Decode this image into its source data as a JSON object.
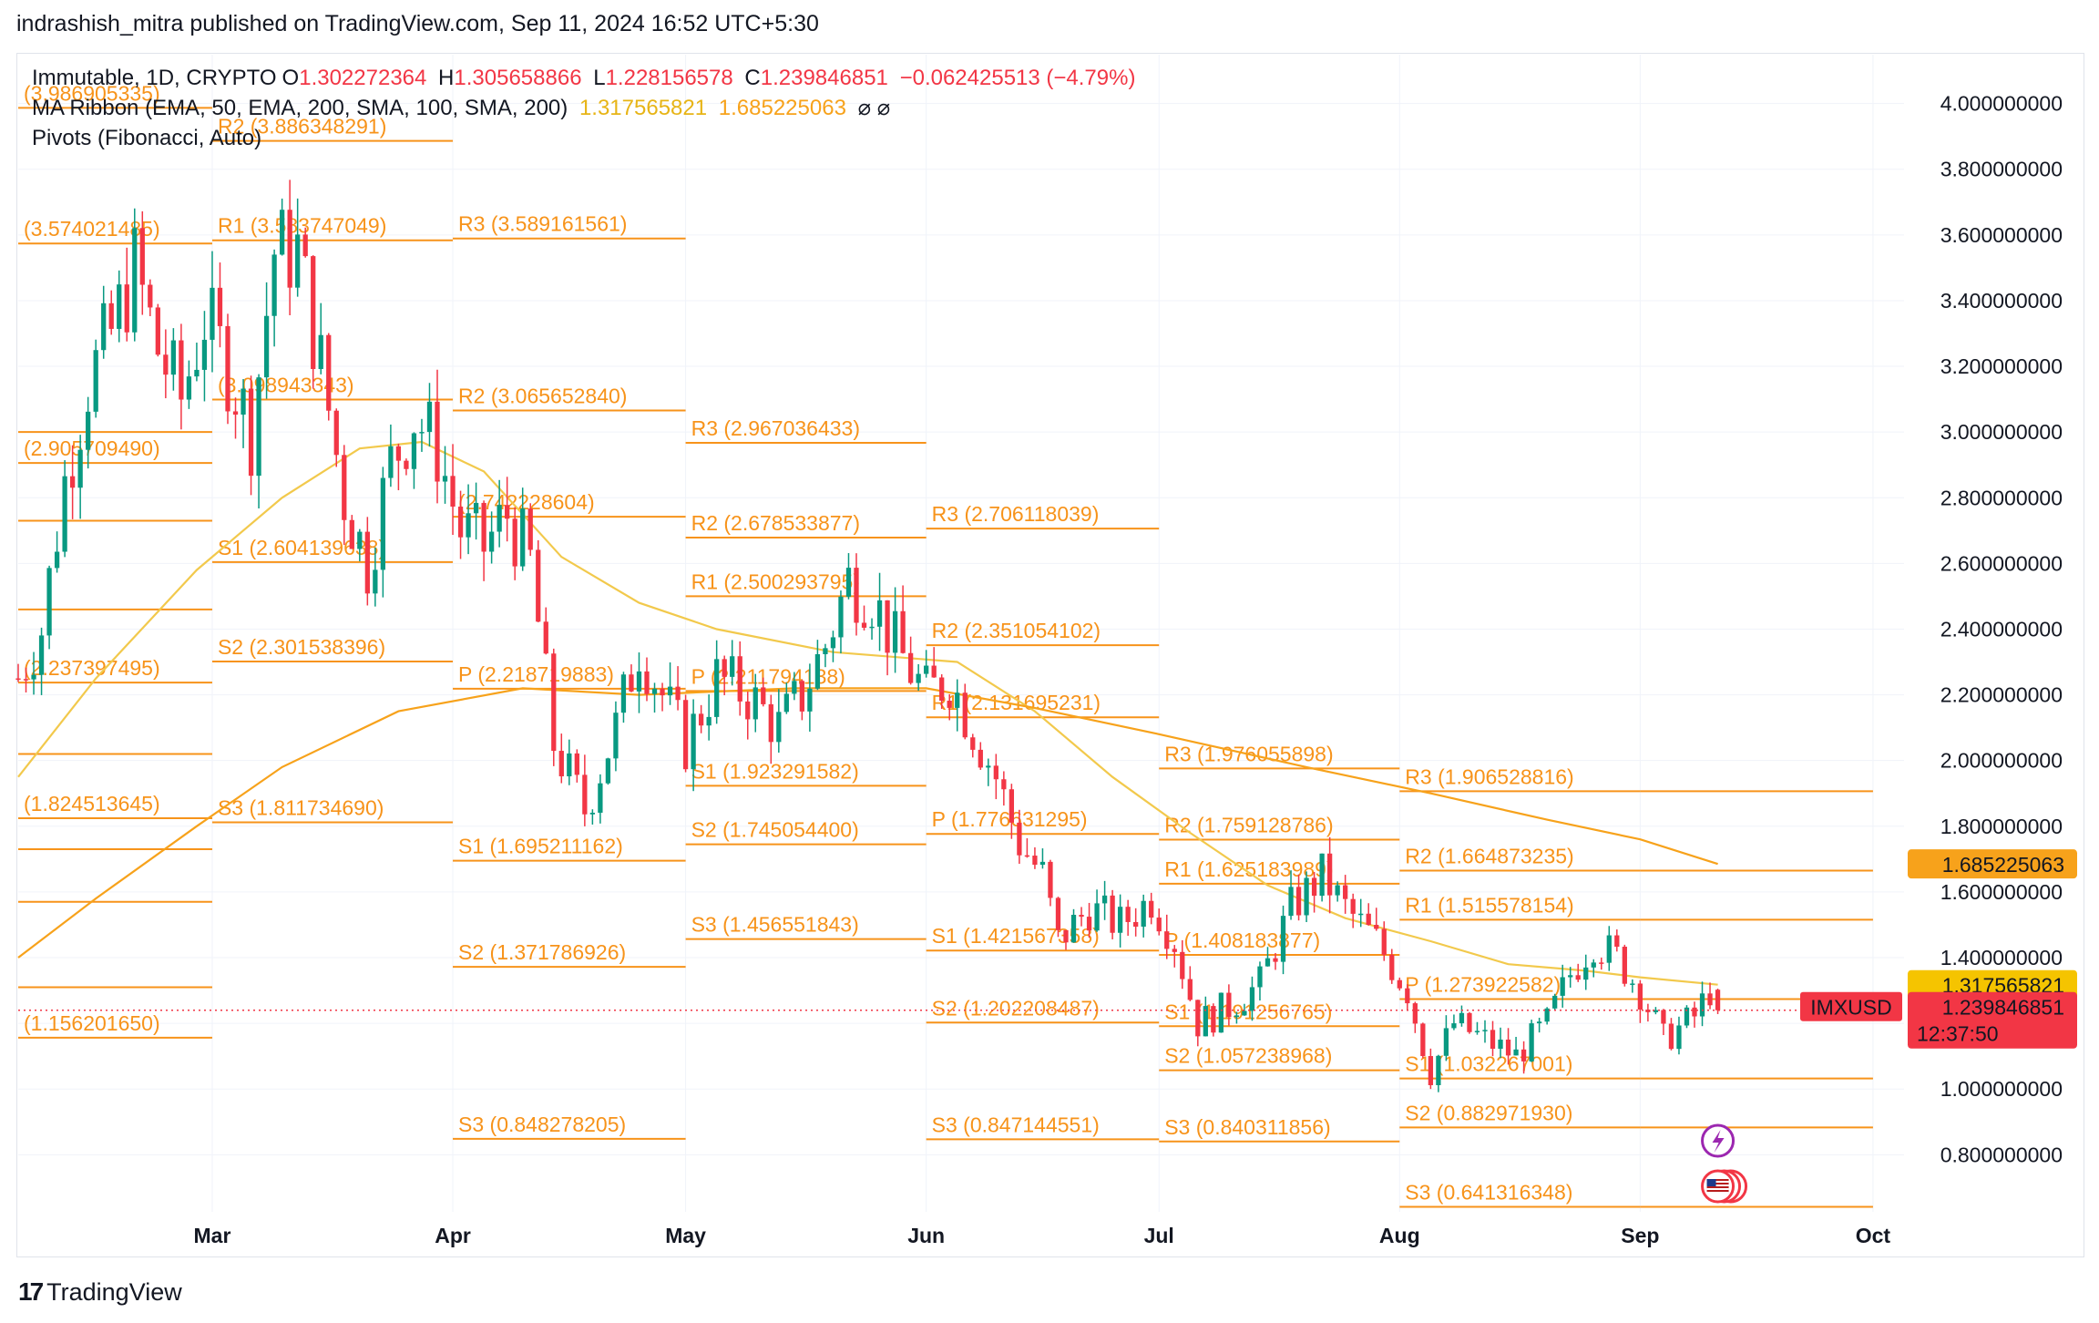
{
  "header": {
    "title": "indrashish_mitra published on TradingView.com, Sep 11, 2024 16:52 UTC+5:30"
  },
  "legend": {
    "symbol": "Immutable, 1D, CRYPTO",
    "o_label": "O",
    "o_value": "1.302272364",
    "h_label": "H",
    "h_value": "1.305658866",
    "l_label": "L",
    "l_value": "1.228156578",
    "c_label": "C",
    "c_value": "1.239846851",
    "change": "−0.062425513 (−4.79%)",
    "ribbon_name": "MA Ribbon (EMA, 50, EMA, 200, SMA, 100, SMA, 200)",
    "ribbon_v1": "1.317565821",
    "ribbon_v2": "1.685225063",
    "ribbon_na": "⌀ ⌀",
    "pivots_name": "Pivots (Fibonacci, Auto)"
  },
  "footer": {
    "brand": "TradingView",
    "mark": "17"
  },
  "colors": {
    "up": "#089981",
    "down": "#f23645",
    "pivot": "#f7931a",
    "ema50": "#f2c94c",
    "ema200": "#f7a21b",
    "price": "#f23645"
  },
  "chart_data": {
    "type": "candlestick",
    "symbol": "IMXUSD",
    "interval": "1D",
    "ylim": [
      0.64,
      4.2
    ],
    "y_ticks": [
      0.8,
      1.0,
      1.2,
      1.4,
      1.6,
      1.8,
      2.0,
      2.2,
      2.4,
      2.6,
      2.8,
      3.0,
      3.2,
      3.4,
      3.6,
      3.8,
      4.0
    ],
    "y_tick_labels": [
      "0.800000000",
      "1.000000000",
      "1.200000000",
      "1.400000000",
      "1.600000000",
      "1.800000000",
      "2.000000000",
      "2.200000000",
      "2.400000000",
      "2.600000000",
      "2.800000000",
      "3.000000000",
      "3.200000000",
      "3.400000000",
      "3.600000000",
      "3.800000000",
      "4.000000000"
    ],
    "x_start": "2024-02-05",
    "x_end": "2024-10-05",
    "x_labels": [
      {
        "date": "2024-03-01",
        "label": "Mar"
      },
      {
        "date": "2024-04-01",
        "label": "Apr"
      },
      {
        "date": "2024-05-01",
        "label": "May"
      },
      {
        "date": "2024-06-01",
        "label": "Jun"
      },
      {
        "date": "2024-07-01",
        "label": "Jul"
      },
      {
        "date": "2024-08-01",
        "label": "Aug"
      },
      {
        "date": "2024-09-01",
        "label": "Sep"
      },
      {
        "date": "2024-10-01",
        "label": "Oct"
      }
    ],
    "last": {
      "open": 1.302272364,
      "high": 1.305658866,
      "low": 1.228156578,
      "close": 1.239846851
    },
    "price_tags": [
      {
        "label": "",
        "value_text": "1.685225063",
        "value": 1.685225063,
        "color": "#f7a21b"
      },
      {
        "label": "",
        "value_text": "1.317565821",
        "value": 1.317565821,
        "color": "#f5c400"
      },
      {
        "label": "IMXUSD",
        "value_text": "1.239846851",
        "sub": "12:37:50",
        "value": 1.239846851,
        "color": "#f23645"
      }
    ],
    "close_anchors": [
      [
        "2024-02-05",
        2.25
      ],
      [
        "2024-02-08",
        2.4
      ],
      [
        "2024-02-11",
        2.85
      ],
      [
        "2024-02-14",
        3.15
      ],
      [
        "2024-02-17",
        3.3
      ],
      [
        "2024-02-20",
        3.5
      ],
      [
        "2024-02-23",
        3.25
      ],
      [
        "2024-02-26",
        3.1
      ],
      [
        "2024-02-29",
        3.35
      ],
      [
        "2024-03-03",
        3.2
      ],
      [
        "2024-03-06",
        3.0
      ],
      [
        "2024-03-09",
        3.55
      ],
      [
        "2024-03-12",
        3.55
      ],
      [
        "2024-03-15",
        3.2
      ],
      [
        "2024-03-18",
        2.8
      ],
      [
        "2024-03-21",
        2.6
      ],
      [
        "2024-03-24",
        2.9
      ],
      [
        "2024-03-27",
        3.05
      ],
      [
        "2024-03-30",
        2.95
      ],
      [
        "2024-04-02",
        2.7
      ],
      [
        "2024-04-05",
        2.65
      ],
      [
        "2024-04-08",
        2.75
      ],
      [
        "2024-04-11",
        2.6
      ],
      [
        "2024-04-14",
        2.05
      ],
      [
        "2024-04-18",
        1.85
      ],
      [
        "2024-04-22",
        2.1
      ],
      [
        "2024-04-25",
        2.35
      ],
      [
        "2024-04-28",
        2.2
      ],
      [
        "2024-05-01",
        2.05
      ],
      [
        "2024-05-05",
        2.25
      ],
      [
        "2024-05-09",
        2.2
      ],
      [
        "2024-05-13",
        2.1
      ],
      [
        "2024-05-16",
        2.2
      ],
      [
        "2024-05-19",
        2.35
      ],
      [
        "2024-05-22",
        2.55
      ],
      [
        "2024-05-25",
        2.5
      ],
      [
        "2024-05-28",
        2.35
      ],
      [
        "2024-06-01",
        2.2
      ],
      [
        "2024-06-04",
        2.25
      ],
      [
        "2024-06-07",
        2.1
      ],
      [
        "2024-06-10",
        1.95
      ],
      [
        "2024-06-13",
        1.75
      ],
      [
        "2024-06-16",
        1.65
      ],
      [
        "2024-06-18",
        1.45
      ],
      [
        "2024-06-22",
        1.55
      ],
      [
        "2024-06-26",
        1.5
      ],
      [
        "2024-06-30",
        1.58
      ],
      [
        "2024-07-03",
        1.45
      ],
      [
        "2024-07-06",
        1.2
      ],
      [
        "2024-07-10",
        1.25
      ],
      [
        "2024-07-14",
        1.32
      ],
      [
        "2024-07-18",
        1.55
      ],
      [
        "2024-07-22",
        1.65
      ],
      [
        "2024-07-25",
        1.55
      ],
      [
        "2024-07-29",
        1.45
      ],
      [
        "2024-08-02",
        1.3
      ],
      [
        "2024-08-05",
        1.05
      ],
      [
        "2024-08-08",
        1.2
      ],
      [
        "2024-08-12",
        1.15
      ],
      [
        "2024-08-16",
        1.1
      ],
      [
        "2024-08-20",
        1.2
      ],
      [
        "2024-08-23",
        1.35
      ],
      [
        "2024-08-26",
        1.45
      ],
      [
        "2024-08-29",
        1.4
      ],
      [
        "2024-09-01",
        1.3
      ],
      [
        "2024-09-04",
        1.15
      ],
      [
        "2024-09-08",
        1.22
      ],
      [
        "2024-09-10",
        1.3021
      ],
      [
        "2024-09-11",
        1.2398
      ]
    ],
    "ema50": [
      [
        "2024-02-05",
        1.95
      ],
      [
        "2024-02-15",
        2.25
      ],
      [
        "2024-02-28",
        2.58
      ],
      [
        "2024-03-10",
        2.8
      ],
      [
        "2024-03-20",
        2.95
      ],
      [
        "2024-03-28",
        2.97
      ],
      [
        "2024-04-05",
        2.88
      ],
      [
        "2024-04-15",
        2.62
      ],
      [
        "2024-04-25",
        2.48
      ],
      [
        "2024-05-05",
        2.4
      ],
      [
        "2024-05-20",
        2.33
      ],
      [
        "2024-06-05",
        2.3
      ],
      [
        "2024-06-15",
        2.15
      ],
      [
        "2024-06-25",
        1.95
      ],
      [
        "2024-07-05",
        1.78
      ],
      [
        "2024-07-15",
        1.62
      ],
      [
        "2024-07-25",
        1.52
      ],
      [
        "2024-08-05",
        1.45
      ],
      [
        "2024-08-15",
        1.38
      ],
      [
        "2024-08-25",
        1.36
      ],
      [
        "2024-09-01",
        1.34
      ],
      [
        "2024-09-11",
        1.3176
      ]
    ],
    "ema200": [
      [
        "2024-02-05",
        1.4
      ],
      [
        "2024-02-15",
        1.58
      ],
      [
        "2024-02-28",
        1.8
      ],
      [
        "2024-03-10",
        1.98
      ],
      [
        "2024-03-25",
        2.15
      ],
      [
        "2024-04-10",
        2.22
      ],
      [
        "2024-04-25",
        2.2
      ],
      [
        "2024-05-15",
        2.22
      ],
      [
        "2024-06-01",
        2.22
      ],
      [
        "2024-06-15",
        2.16
      ],
      [
        "2024-07-01",
        2.08
      ],
      [
        "2024-07-20",
        1.98
      ],
      [
        "2024-08-05",
        1.9
      ],
      [
        "2024-08-20",
        1.82
      ],
      [
        "2024-09-01",
        1.76
      ],
      [
        "2024-09-11",
        1.6852
      ]
    ],
    "pivots": [
      {
        "period": "2024-02",
        "start": "2024-02-05",
        "end": "2024-03-01",
        "levels": [
          {
            "name": "",
            "value": 3.986905335,
            "text": "(3.986905335)"
          },
          {
            "name": "",
            "value": 3.574021485,
            "text": "(3.574021485)"
          },
          {
            "name": "",
            "value": 3.0,
            "text": ""
          },
          {
            "name": "",
            "value": 2.90570949,
            "text": "(2.905709490)"
          },
          {
            "name": "",
            "value": 2.73,
            "text": ""
          },
          {
            "name": "",
            "value": 2.46,
            "text": ""
          },
          {
            "name": "",
            "value": 2.237397495,
            "text": "(2.237397495)"
          },
          {
            "name": "",
            "value": 2.02,
            "text": ""
          },
          {
            "name": "",
            "value": 1.824513645,
            "text": "(1.824513645)"
          },
          {
            "name": "",
            "value": 1.73,
            "text": ""
          },
          {
            "name": "",
            "value": 1.57,
            "text": ""
          },
          {
            "name": "",
            "value": 1.31,
            "text": ""
          },
          {
            "name": "",
            "value": 1.15620165,
            "text": "(1.156201650)"
          }
        ]
      },
      {
        "period": "2024-03",
        "start": "2024-03-01",
        "end": "2024-04-01",
        "levels": [
          {
            "name": "R2",
            "value": 3.886348291,
            "text": "R2 (3.886348291)"
          },
          {
            "name": "R1",
            "value": 3.583747049,
            "text": "R1 (3.583747049)"
          },
          {
            "name": "P",
            "value": 3.098943343,
            "text": "(3.098943343)"
          },
          {
            "name": "S1",
            "value": 2.604139638,
            "text": "S1 (2.604139638)"
          },
          {
            "name": "S2",
            "value": 2.301538396,
            "text": "S2 (2.301538396)"
          },
          {
            "name": "S3",
            "value": 1.81173469,
            "text": "S3 (1.811734690)"
          }
        ]
      },
      {
        "period": "2024-04",
        "start": "2024-04-01",
        "end": "2024-05-01",
        "levels": [
          {
            "name": "R3",
            "value": 3.589161561,
            "text": "R3 (3.589161561)"
          },
          {
            "name": "R2",
            "value": 3.06565284,
            "text": "R2 (3.065652840)"
          },
          {
            "name": "R1",
            "value": 2.742228604,
            "text": "(2.742228604)"
          },
          {
            "name": "P",
            "value": 2.218719883,
            "text": "P (2.218719883)"
          },
          {
            "name": "S1",
            "value": 1.695211162,
            "text": "S1 (1.695211162)"
          },
          {
            "name": "S2",
            "value": 1.371786926,
            "text": "S2 (1.371786926)"
          },
          {
            "name": "S3",
            "value": 0.848278205,
            "text": "S3 (0.848278205)"
          }
        ]
      },
      {
        "period": "2024-05",
        "start": "2024-05-01",
        "end": "2024-06-01",
        "levels": [
          {
            "name": "R3",
            "value": 2.967036433,
            "text": "R3 (2.967036433)"
          },
          {
            "name": "R2",
            "value": 2.678533877,
            "text": "R2 (2.678533877)"
          },
          {
            "name": "R1",
            "value": 2.500293795,
            "text": "R1 (2.500293795)"
          },
          {
            "name": "P",
            "value": 2.211794138,
            "text": "P (2.211794138)"
          },
          {
            "name": "S1",
            "value": 1.923291582,
            "text": "S1 (1.923291582)"
          },
          {
            "name": "S2",
            "value": 1.7450544,
            "text": "S2 (1.745054400)"
          },
          {
            "name": "S3",
            "value": 1.456551843,
            "text": "S3 (1.456551843)"
          }
        ]
      },
      {
        "period": "2024-06",
        "start": "2024-06-01",
        "end": "2024-07-01",
        "levels": [
          {
            "name": "R3",
            "value": 2.706118039,
            "text": "R3 (2.706118039)"
          },
          {
            "name": "R2",
            "value": 2.351054102,
            "text": "R2 (2.351054102)"
          },
          {
            "name": "R1",
            "value": 2.131695231,
            "text": "R1 (2.131695231)"
          },
          {
            "name": "P",
            "value": 1.776631295,
            "text": "P (1.776631295)"
          },
          {
            "name": "S1",
            "value": 1.421567358,
            "text": "S1 (1.421567358)"
          },
          {
            "name": "S2",
            "value": 1.202208487,
            "text": "S2 (1.202208487)"
          },
          {
            "name": "S3",
            "value": 0.847144551,
            "text": "S3 (0.847144551)"
          }
        ]
      },
      {
        "period": "2024-07",
        "start": "2024-07-01",
        "end": "2024-08-01",
        "levels": [
          {
            "name": "R3",
            "value": 1.976055898,
            "text": "R3 (1.976055898)"
          },
          {
            "name": "R2",
            "value": 1.759128786,
            "text": "R2 (1.759128786)"
          },
          {
            "name": "R1",
            "value": 1.625183989,
            "text": "R1 (1.625183989)"
          },
          {
            "name": "P",
            "value": 1.408183877,
            "text": "P (1.408183877)"
          },
          {
            "name": "S1",
            "value": 1.191256765,
            "text": "S1 (1.191256765)"
          },
          {
            "name": "S2",
            "value": 1.057238968,
            "text": "S2 (1.057238968)"
          },
          {
            "name": "S3",
            "value": 0.840311856,
            "text": "S3 (0.840311856)"
          }
        ]
      },
      {
        "period": "2024-08",
        "start": "2024-08-01",
        "end": "2024-09-01",
        "levels": [
          {
            "name": "R3",
            "value": 1.906528816,
            "text": "R3 (1.906528816)"
          },
          {
            "name": "R2",
            "value": 1.664873235,
            "text": "R2 (1.664873235)"
          },
          {
            "name": "R1",
            "value": 1.515578154,
            "text": "R1 (1.515578154)"
          },
          {
            "name": "P",
            "value": 1.273922582,
            "text": "P (1.273922582)"
          },
          {
            "name": "S1",
            "value": 1.032267001,
            "text": "S1 (1.032267001)"
          },
          {
            "name": "S2",
            "value": 0.88297193,
            "text": "S2 (0.882971930)"
          },
          {
            "name": "S3",
            "value": 0.641316348,
            "text": "S3 (0.641316348)"
          }
        ]
      },
      {
        "period": "2024-09",
        "start": "2024-09-01",
        "end": "2024-10-01",
        "levels": [
          {
            "name": "",
            "value": 1.906528816,
            "text": ""
          },
          {
            "name": "",
            "value": 1.664873235,
            "text": ""
          },
          {
            "name": "",
            "value": 1.515578154,
            "text": ""
          },
          {
            "name": "",
            "value": 1.273922582,
            "text": ""
          },
          {
            "name": "",
            "value": 1.032267001,
            "text": ""
          },
          {
            "name": "",
            "value": 0.88297193,
            "text": ""
          },
          {
            "name": "",
            "value": 0.641316348,
            "text": ""
          }
        ]
      }
    ]
  }
}
